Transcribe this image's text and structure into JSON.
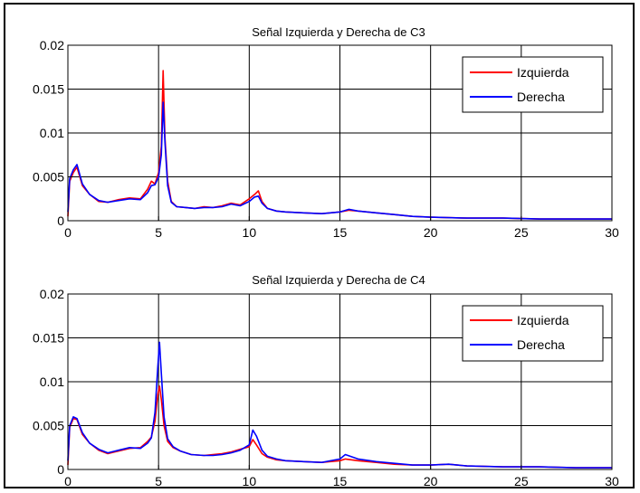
{
  "chart_data": [
    {
      "type": "line",
      "title": "Señal Izquierda y Derecha de C3",
      "xlabel": "",
      "ylabel": "",
      "xlim": [
        0,
        30
      ],
      "ylim": [
        0,
        0.02
      ],
      "xticks": [
        "0",
        "5",
        "10",
        "15",
        "20",
        "25",
        "30"
      ],
      "yticks": [
        "0",
        "0.005",
        "0.01",
        "0.015",
        "0.02"
      ],
      "grid": true,
      "legend_position": "top-right",
      "series": [
        {
          "name": "Izquierda",
          "color": "#ff0000",
          "x": [
            0,
            0.1,
            0.3,
            0.5,
            0.8,
            1.2,
            1.7,
            2.2,
            2.8,
            3.4,
            4.0,
            4.4,
            4.6,
            4.8,
            5.0,
            5.15,
            5.25,
            5.35,
            5.5,
            5.7,
            6.0,
            6.5,
            7.0,
            7.5,
            8.0,
            8.5,
            9.0,
            9.5,
            10.0,
            10.3,
            10.5,
            10.7,
            11.0,
            11.5,
            12.0,
            13.0,
            14.0,
            15.0,
            15.5,
            16.0,
            17.0,
            18.0,
            19.0,
            20.0,
            22.0,
            24.0,
            26.0,
            28.0,
            30.0
          ],
          "values": [
            0.0005,
            0.0045,
            0.0055,
            0.0061,
            0.004,
            0.003,
            0.0022,
            0.0021,
            0.0024,
            0.0026,
            0.0025,
            0.0036,
            0.0045,
            0.0042,
            0.0055,
            0.0085,
            0.0171,
            0.0095,
            0.0045,
            0.0022,
            0.0016,
            0.0015,
            0.0014,
            0.0016,
            0.0015,
            0.0017,
            0.002,
            0.0018,
            0.0025,
            0.003,
            0.0034,
            0.0022,
            0.0014,
            0.0011,
            0.001,
            0.0009,
            0.0008,
            0.001,
            0.0012,
            0.0011,
            0.0009,
            0.0007,
            0.0005,
            0.0004,
            0.0003,
            0.0003,
            0.0002,
            0.0002,
            0.0002
          ]
        },
        {
          "name": "Derecha",
          "color": "#0000ff",
          "x": [
            0,
            0.1,
            0.3,
            0.5,
            0.8,
            1.2,
            1.7,
            2.2,
            2.8,
            3.4,
            4.0,
            4.4,
            4.6,
            4.8,
            5.0,
            5.15,
            5.25,
            5.35,
            5.5,
            5.7,
            6.0,
            6.5,
            7.0,
            7.5,
            8.0,
            8.5,
            9.0,
            9.5,
            10.0,
            10.3,
            10.5,
            10.7,
            11.0,
            11.5,
            12.0,
            13.0,
            14.0,
            15.0,
            15.5,
            16.0,
            17.0,
            18.0,
            19.0,
            20.0,
            22.0,
            24.0,
            26.0,
            28.0,
            30.0
          ],
          "values": [
            0.001,
            0.0048,
            0.0058,
            0.0064,
            0.0042,
            0.003,
            0.0023,
            0.0021,
            0.0023,
            0.0025,
            0.0024,
            0.0032,
            0.004,
            0.0041,
            0.005,
            0.0075,
            0.0135,
            0.009,
            0.004,
            0.0021,
            0.0016,
            0.0015,
            0.0014,
            0.0015,
            0.0015,
            0.0016,
            0.0019,
            0.0017,
            0.0022,
            0.0027,
            0.0028,
            0.002,
            0.0014,
            0.0011,
            0.001,
            0.0009,
            0.0008,
            0.001,
            0.0013,
            0.0011,
            0.0009,
            0.0007,
            0.0005,
            0.0004,
            0.0003,
            0.0003,
            0.0002,
            0.0002,
            0.0002
          ]
        }
      ]
    },
    {
      "type": "line",
      "title": "Señal Izquierda y Derecha de C4",
      "xlabel": "",
      "ylabel": "",
      "xlim": [
        0,
        30
      ],
      "ylim": [
        0,
        0.02
      ],
      "xticks": [
        "0",
        "5",
        "10",
        "15",
        "20",
        "25",
        "30"
      ],
      "yticks": [
        "0",
        "0.005",
        "0.01",
        "0.015",
        "0.02"
      ],
      "grid": true,
      "legend_position": "top-right",
      "series": [
        {
          "name": "Izquierda",
          "color": "#ff0000",
          "x": [
            0,
            0.1,
            0.3,
            0.5,
            0.8,
            1.2,
            1.7,
            2.2,
            2.8,
            3.4,
            4.0,
            4.4,
            4.6,
            4.8,
            4.95,
            5.05,
            5.15,
            5.3,
            5.5,
            5.8,
            6.2,
            6.8,
            7.5,
            8.0,
            8.5,
            9.0,
            9.5,
            10.0,
            10.2,
            10.4,
            10.7,
            11.0,
            11.5,
            12.0,
            13.0,
            14.0,
            15.0,
            15.3,
            16.0,
            17.0,
            18.0,
            19.0,
            20.0,
            21.0,
            22.0,
            24.0,
            26.0,
            28.0,
            30.0
          ],
          "values": [
            0.0005,
            0.0048,
            0.0058,
            0.0057,
            0.004,
            0.003,
            0.0022,
            0.0018,
            0.0021,
            0.0024,
            0.0025,
            0.0032,
            0.0037,
            0.0055,
            0.0085,
            0.0095,
            0.008,
            0.005,
            0.0032,
            0.0025,
            0.0021,
            0.0017,
            0.0016,
            0.0017,
            0.0018,
            0.002,
            0.0023,
            0.0026,
            0.0034,
            0.0028,
            0.0018,
            0.0014,
            0.0011,
            0.001,
            0.0009,
            0.0008,
            0.001,
            0.0012,
            0.001,
            0.0008,
            0.0006,
            0.0005,
            0.0005,
            0.0006,
            0.0004,
            0.0003,
            0.0003,
            0.0002,
            0.0002
          ]
        },
        {
          "name": "Derecha",
          "color": "#0000ff",
          "x": [
            0,
            0.1,
            0.3,
            0.5,
            0.8,
            1.2,
            1.7,
            2.2,
            2.8,
            3.4,
            4.0,
            4.4,
            4.6,
            4.8,
            4.95,
            5.05,
            5.15,
            5.3,
            5.5,
            5.8,
            6.2,
            6.8,
            7.5,
            8.0,
            8.5,
            9.0,
            9.5,
            10.0,
            10.2,
            10.4,
            10.7,
            11.0,
            11.5,
            12.0,
            13.0,
            14.0,
            15.0,
            15.3,
            16.0,
            17.0,
            18.0,
            19.0,
            20.0,
            21.0,
            22.0,
            24.0,
            26.0,
            28.0,
            30.0
          ],
          "values": [
            0.001,
            0.005,
            0.006,
            0.0058,
            0.0042,
            0.003,
            0.0023,
            0.0019,
            0.0022,
            0.0025,
            0.0024,
            0.003,
            0.0036,
            0.0065,
            0.0115,
            0.0145,
            0.011,
            0.006,
            0.0035,
            0.0026,
            0.0021,
            0.0017,
            0.0016,
            0.0016,
            0.0017,
            0.0019,
            0.0022,
            0.0028,
            0.0045,
            0.0038,
            0.0022,
            0.0015,
            0.0012,
            0.001,
            0.0009,
            0.0008,
            0.0012,
            0.0017,
            0.0012,
            0.0009,
            0.0007,
            0.0005,
            0.0005,
            0.0006,
            0.0004,
            0.0003,
            0.0003,
            0.0002,
            0.0002
          ]
        }
      ]
    }
  ]
}
